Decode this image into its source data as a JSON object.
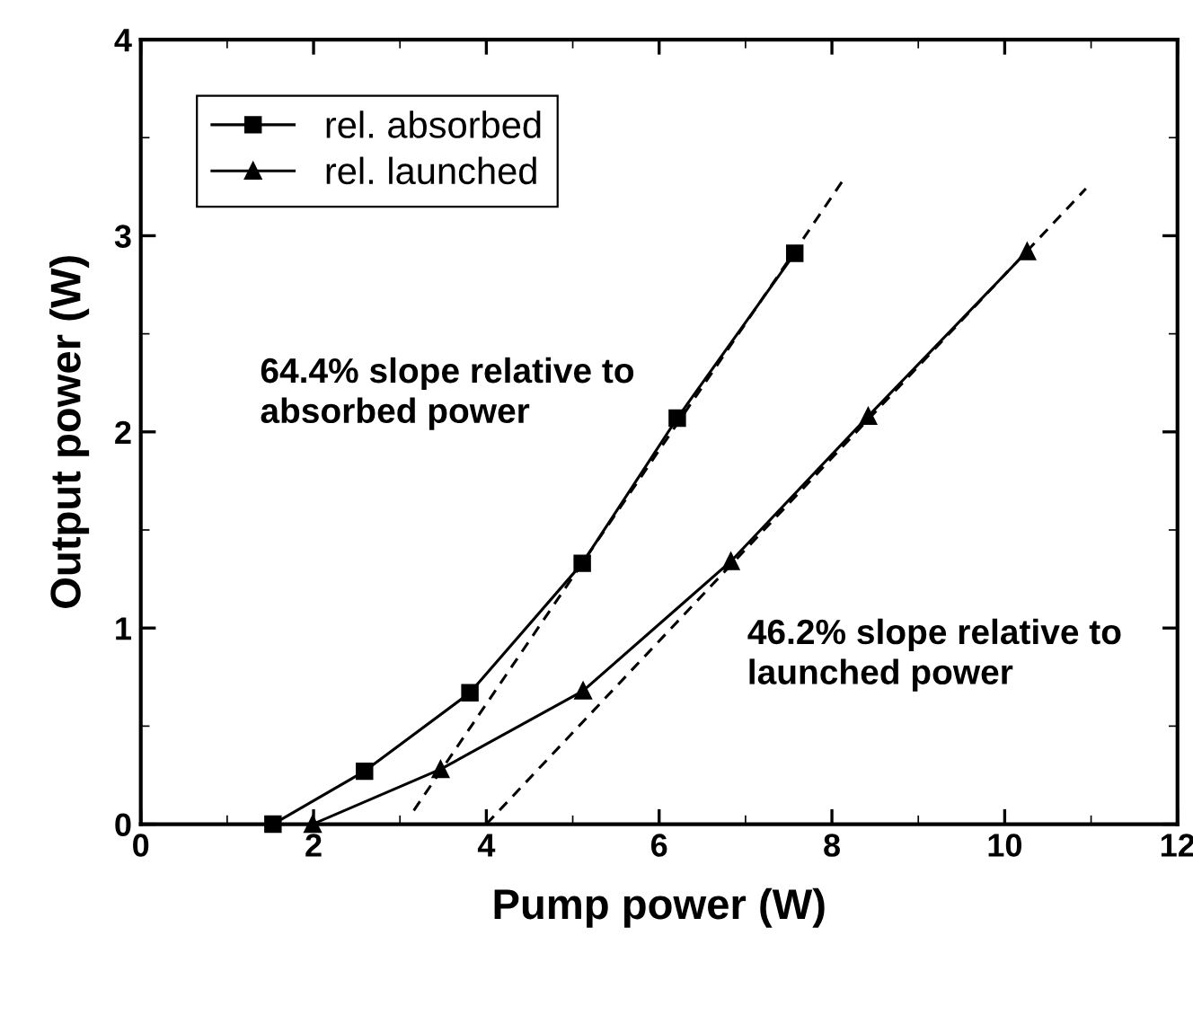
{
  "chart_data": {
    "type": "line",
    "xlabel": "Pump power (W)",
    "ylabel": "Output power (W)",
    "xlim": [
      0,
      12
    ],
    "xticks": [
      0,
      2,
      4,
      6,
      8,
      10,
      12
    ],
    "ylim": [
      0,
      4
    ],
    "yticks": [
      0,
      1,
      2,
      3,
      4
    ],
    "legend": "top left",
    "grid": false,
    "line_style": "solid",
    "series": [
      {
        "name": "rel. absorbed",
        "color": "#000000",
        "marker": "square",
        "x": [
          1.53,
          2.59,
          3.81,
          5.11,
          6.21,
          7.57
        ],
        "values": [
          0,
          0.27,
          0.67,
          1.33,
          2.07,
          2.91
        ]
      },
      {
        "name": "rel. launched",
        "color": "#000000",
        "marker": "triangle",
        "x": [
          1.99,
          3.47,
          5.12,
          6.83,
          8.42,
          10.26
        ],
        "values": [
          0,
          0.28,
          0.68,
          1.34,
          2.08,
          2.92
        ]
      },
      {
        "color": "#000000",
        "marker": "none",
        "line_style": "dashed",
        "x": [
          3.16,
          8.14
        ],
        "values": [
          0.07,
          3.29
        ]
      },
      {
        "color": "#000000",
        "marker": "none",
        "line_style": "dashed",
        "x": [
          4.0,
          10.94
        ],
        "values": [
          0,
          3.24
        ]
      }
    ],
    "annotations": [
      "64.4% slope relative to\nabsorbed power",
      "46.2% slope relative to\nlaunched power"
    ]
  }
}
